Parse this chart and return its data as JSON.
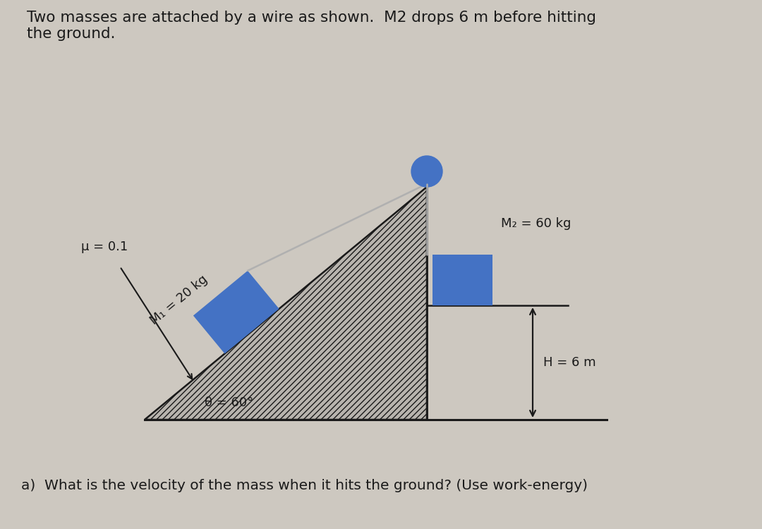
{
  "title_text": "Two masses are attached by a wire as shown.  M2 drops 6 m before hitting\nthe ground.",
  "question_text": "a)  What is the velocity of the mass when it hits the ground? (Use work-energy)",
  "bg_color": "#cdc8c0",
  "mu_label": "μ = 0.1",
  "M1_label": "M₁ = 20 kg",
  "M2_label": "M₂ = 60 kg",
  "theta_label": "θ = 60°",
  "H_label": "H = 6 m",
  "ramp_fill_color": "#b8b4ae",
  "block_color": "#4472c4",
  "pulley_color": "#4472c4",
  "wire_color": "#b0b0b0",
  "line_color": "#1a1a1a",
  "text_color": "#1a1a1a",
  "title_fontsize": 15.5,
  "label_fontsize": 13,
  "question_fontsize": 14.5
}
